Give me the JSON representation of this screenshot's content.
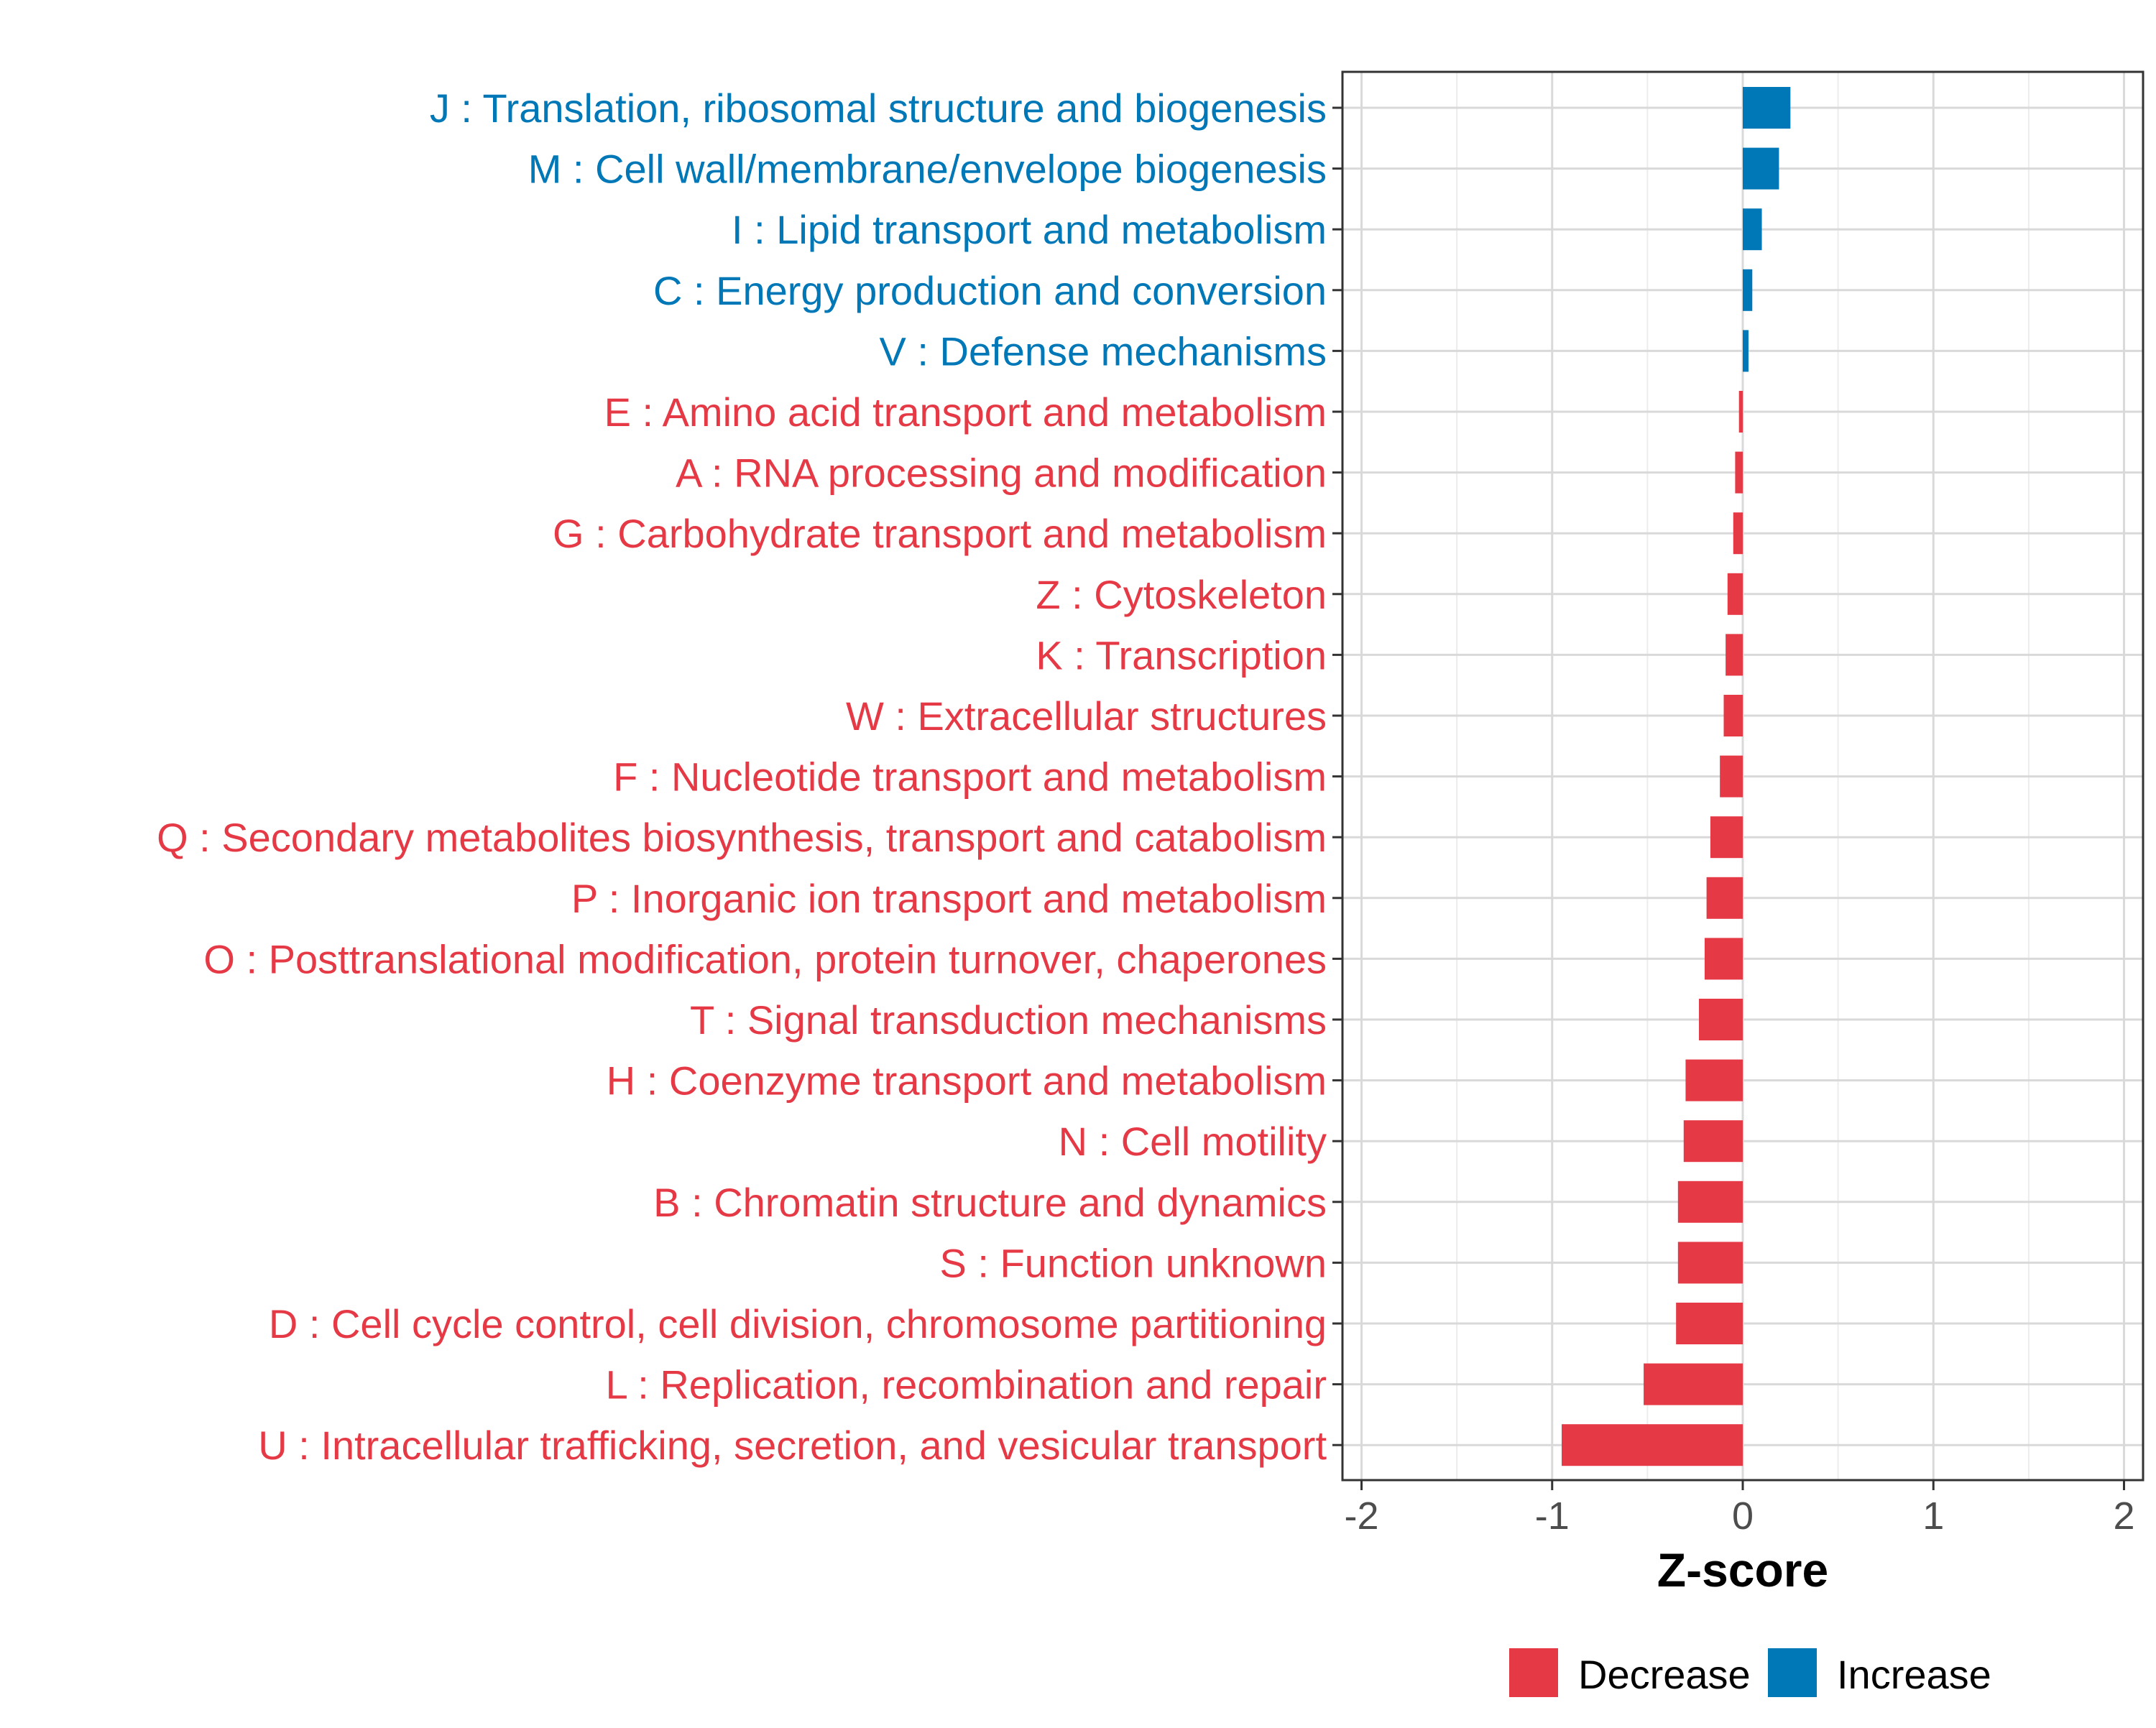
{
  "chart_data": {
    "type": "bar",
    "orientation": "horizontal",
    "title": "",
    "xlabel": "Z-score",
    "ylabel": "",
    "xlim": [
      -2.1,
      2.1
    ],
    "x_ticks": [
      -2,
      -1,
      0,
      1,
      2
    ],
    "x_tick_labels": [
      "-2",
      "-1",
      "0",
      "1",
      "2"
    ],
    "grid": true,
    "legend_position": "bottom",
    "colors": {
      "Decrease": "#e63946",
      "Increase": "#0077b6"
    },
    "categories": [
      {
        "label": "J : Translation, ribosomal structure and biogenesis",
        "value": 0.25,
        "direction": "Increase"
      },
      {
        "label": "M : Cell wall/membrane/envelope biogenesis",
        "value": 0.19,
        "direction": "Increase"
      },
      {
        "label": "I : Lipid transport and metabolism",
        "value": 0.1,
        "direction": "Increase"
      },
      {
        "label": "C : Energy production and conversion",
        "value": 0.05,
        "direction": "Increase"
      },
      {
        "label": "V : Defense mechanisms",
        "value": 0.03,
        "direction": "Increase"
      },
      {
        "label": "E : Amino acid transport and metabolism",
        "value": -0.02,
        "direction": "Decrease"
      },
      {
        "label": "A : RNA processing and modification",
        "value": -0.04,
        "direction": "Decrease"
      },
      {
        "label": "G : Carbohydrate transport and metabolism",
        "value": -0.05,
        "direction": "Decrease"
      },
      {
        "label": "Z : Cytoskeleton",
        "value": -0.08,
        "direction": "Decrease"
      },
      {
        "label": "K : Transcription",
        "value": -0.09,
        "direction": "Decrease"
      },
      {
        "label": "W : Extracellular structures",
        "value": -0.1,
        "direction": "Decrease"
      },
      {
        "label": "F : Nucleotide transport and metabolism",
        "value": -0.12,
        "direction": "Decrease"
      },
      {
        "label": "Q : Secondary metabolites biosynthesis, transport and catabolism",
        "value": -0.17,
        "direction": "Decrease"
      },
      {
        "label": "P : Inorganic ion transport and metabolism",
        "value": -0.19,
        "direction": "Decrease"
      },
      {
        "label": "O : Posttranslational modification, protein turnover, chaperones",
        "value": -0.2,
        "direction": "Decrease"
      },
      {
        "label": "T : Signal transduction mechanisms",
        "value": -0.23,
        "direction": "Decrease"
      },
      {
        "label": "H : Coenzyme transport and metabolism",
        "value": -0.3,
        "direction": "Decrease"
      },
      {
        "label": "N : Cell motility",
        "value": -0.31,
        "direction": "Decrease"
      },
      {
        "label": "B : Chromatin structure and dynamics",
        "value": -0.34,
        "direction": "Decrease"
      },
      {
        "label": "S : Function unknown",
        "value": -0.34,
        "direction": "Decrease"
      },
      {
        "label": "D : Cell cycle control, cell division, chromosome partitioning",
        "value": -0.35,
        "direction": "Decrease"
      },
      {
        "label": "L : Replication, recombination and repair",
        "value": -0.52,
        "direction": "Decrease"
      },
      {
        "label": "U : Intracellular trafficking, secretion, and vesicular transport",
        "value": -0.95,
        "direction": "Decrease"
      }
    ],
    "legend": [
      {
        "label": "Decrease",
        "color": "#e63946"
      },
      {
        "label": "Increase",
        "color": "#0077b6"
      }
    ]
  }
}
